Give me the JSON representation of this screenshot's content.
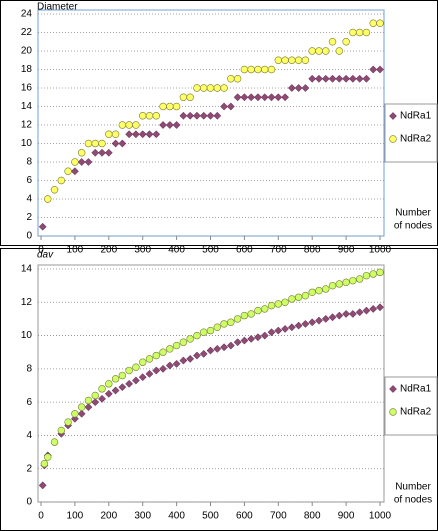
{
  "chart_data": [
    {
      "type": "scatter",
      "title": "Diameter",
      "x_label": [
        "Number",
        "of nodes"
      ],
      "x": [
        5,
        20,
        40,
        60,
        80,
        100,
        120,
        140,
        160,
        180,
        200,
        220,
        240,
        260,
        280,
        300,
        320,
        340,
        360,
        380,
        400,
        420,
        440,
        460,
        480,
        500,
        520,
        540,
        560,
        580,
        600,
        620,
        640,
        660,
        680,
        700,
        720,
        740,
        760,
        780,
        800,
        820,
        840,
        860,
        880,
        900,
        920,
        940,
        960,
        980,
        1000
      ],
      "series": [
        {
          "name": "NdRa1",
          "color": "#8e4a74",
          "marker": "diamond",
          "values": [
            1,
            4,
            5,
            6,
            7,
            7,
            8,
            8,
            9,
            9,
            9,
            10,
            10,
            11,
            11,
            11,
            11,
            11,
            12,
            12,
            12,
            13,
            13,
            13,
            13,
            13,
            13,
            14,
            14,
            15,
            15,
            15,
            15,
            15,
            15,
            15,
            15,
            16,
            16,
            16,
            17,
            17,
            17,
            17,
            17,
            17,
            17,
            17,
            17,
            18,
            18
          ]
        },
        {
          "name": "NdRa2",
          "color": "#ffff66",
          "marker": "circle",
          "values": [
            null,
            4,
            5,
            6,
            7,
            8,
            9,
            10,
            10,
            10,
            11,
            11,
            12,
            12,
            12,
            13,
            13,
            13,
            14,
            14,
            14,
            15,
            15,
            16,
            16,
            16,
            16,
            16,
            17,
            17,
            18,
            18,
            18,
            18,
            18,
            19,
            19,
            19,
            19,
            19,
            20,
            20,
            20,
            21,
            20,
            21,
            22,
            22,
            22,
            23,
            23
          ]
        }
      ],
      "xlim": [
        0,
        1000
      ],
      "xticks": [
        0,
        100,
        200,
        300,
        400,
        500,
        600,
        700,
        800,
        900,
        1000
      ],
      "ylim": [
        0,
        24
      ],
      "yticks": [
        0,
        2,
        4,
        6,
        8,
        10,
        12,
        14,
        16,
        18,
        20,
        22,
        24
      ],
      "grid": true,
      "legend": "right"
    },
    {
      "type": "scatter",
      "title": "dav",
      "x_label": [
        "Number",
        "of nodes"
      ],
      "x": [
        5,
        10,
        20,
        40,
        60,
        80,
        100,
        120,
        140,
        160,
        180,
        200,
        220,
        240,
        260,
        280,
        300,
        320,
        340,
        360,
        380,
        400,
        420,
        440,
        460,
        480,
        500,
        520,
        540,
        560,
        580,
        600,
        620,
        640,
        660,
        680,
        700,
        720,
        740,
        760,
        780,
        800,
        820,
        840,
        860,
        880,
        900,
        920,
        940,
        960,
        980,
        1000
      ],
      "series": [
        {
          "name": "NdRa1",
          "color": "#8e4a74",
          "marker": "diamond",
          "values": [
            1,
            2.2,
            2.8,
            3.6,
            4.1,
            4.6,
            5.0,
            5.3,
            5.7,
            6.0,
            6.2,
            6.5,
            6.7,
            6.9,
            7.1,
            7.3,
            7.5,
            7.7,
            7.9,
            8.0,
            8.2,
            8.3,
            8.5,
            8.6,
            8.8,
            8.9,
            9.1,
            9.2,
            9.3,
            9.4,
            9.6,
            9.7,
            9.8,
            9.9,
            10.0,
            10.2,
            10.3,
            10.4,
            10.5,
            10.6,
            10.7,
            10.8,
            10.9,
            11.0,
            11.1,
            11.2,
            11.3,
            11.3,
            11.4,
            11.5,
            11.6,
            11.7
          ]
        },
        {
          "name": "NdRa2",
          "color": "#ccff66",
          "marker": "circle",
          "values": [
            null,
            2.3,
            2.7,
            3.6,
            4.3,
            4.8,
            5.3,
            5.7,
            6.1,
            6.4,
            6.8,
            7.1,
            7.4,
            7.6,
            7.9,
            8.1,
            8.4,
            8.6,
            8.8,
            9.0,
            9.2,
            9.4,
            9.6,
            9.8,
            10.0,
            10.2,
            10.3,
            10.5,
            10.7,
            10.8,
            11.0,
            11.2,
            11.3,
            11.5,
            11.6,
            11.8,
            11.9,
            12.0,
            12.2,
            12.3,
            12.4,
            12.6,
            12.7,
            12.8,
            13.0,
            13.1,
            13.2,
            13.3,
            13.4,
            13.6,
            13.7,
            13.8
          ]
        }
      ],
      "xlim": [
        0,
        1000
      ],
      "xticks": [
        0,
        100,
        200,
        300,
        400,
        500,
        600,
        700,
        800,
        900,
        1000
      ],
      "ylim": [
        0,
        14
      ],
      "yticks": [
        0,
        2,
        4,
        6,
        8,
        10,
        12,
        14
      ],
      "grid": true,
      "legend": "right"
    }
  ]
}
